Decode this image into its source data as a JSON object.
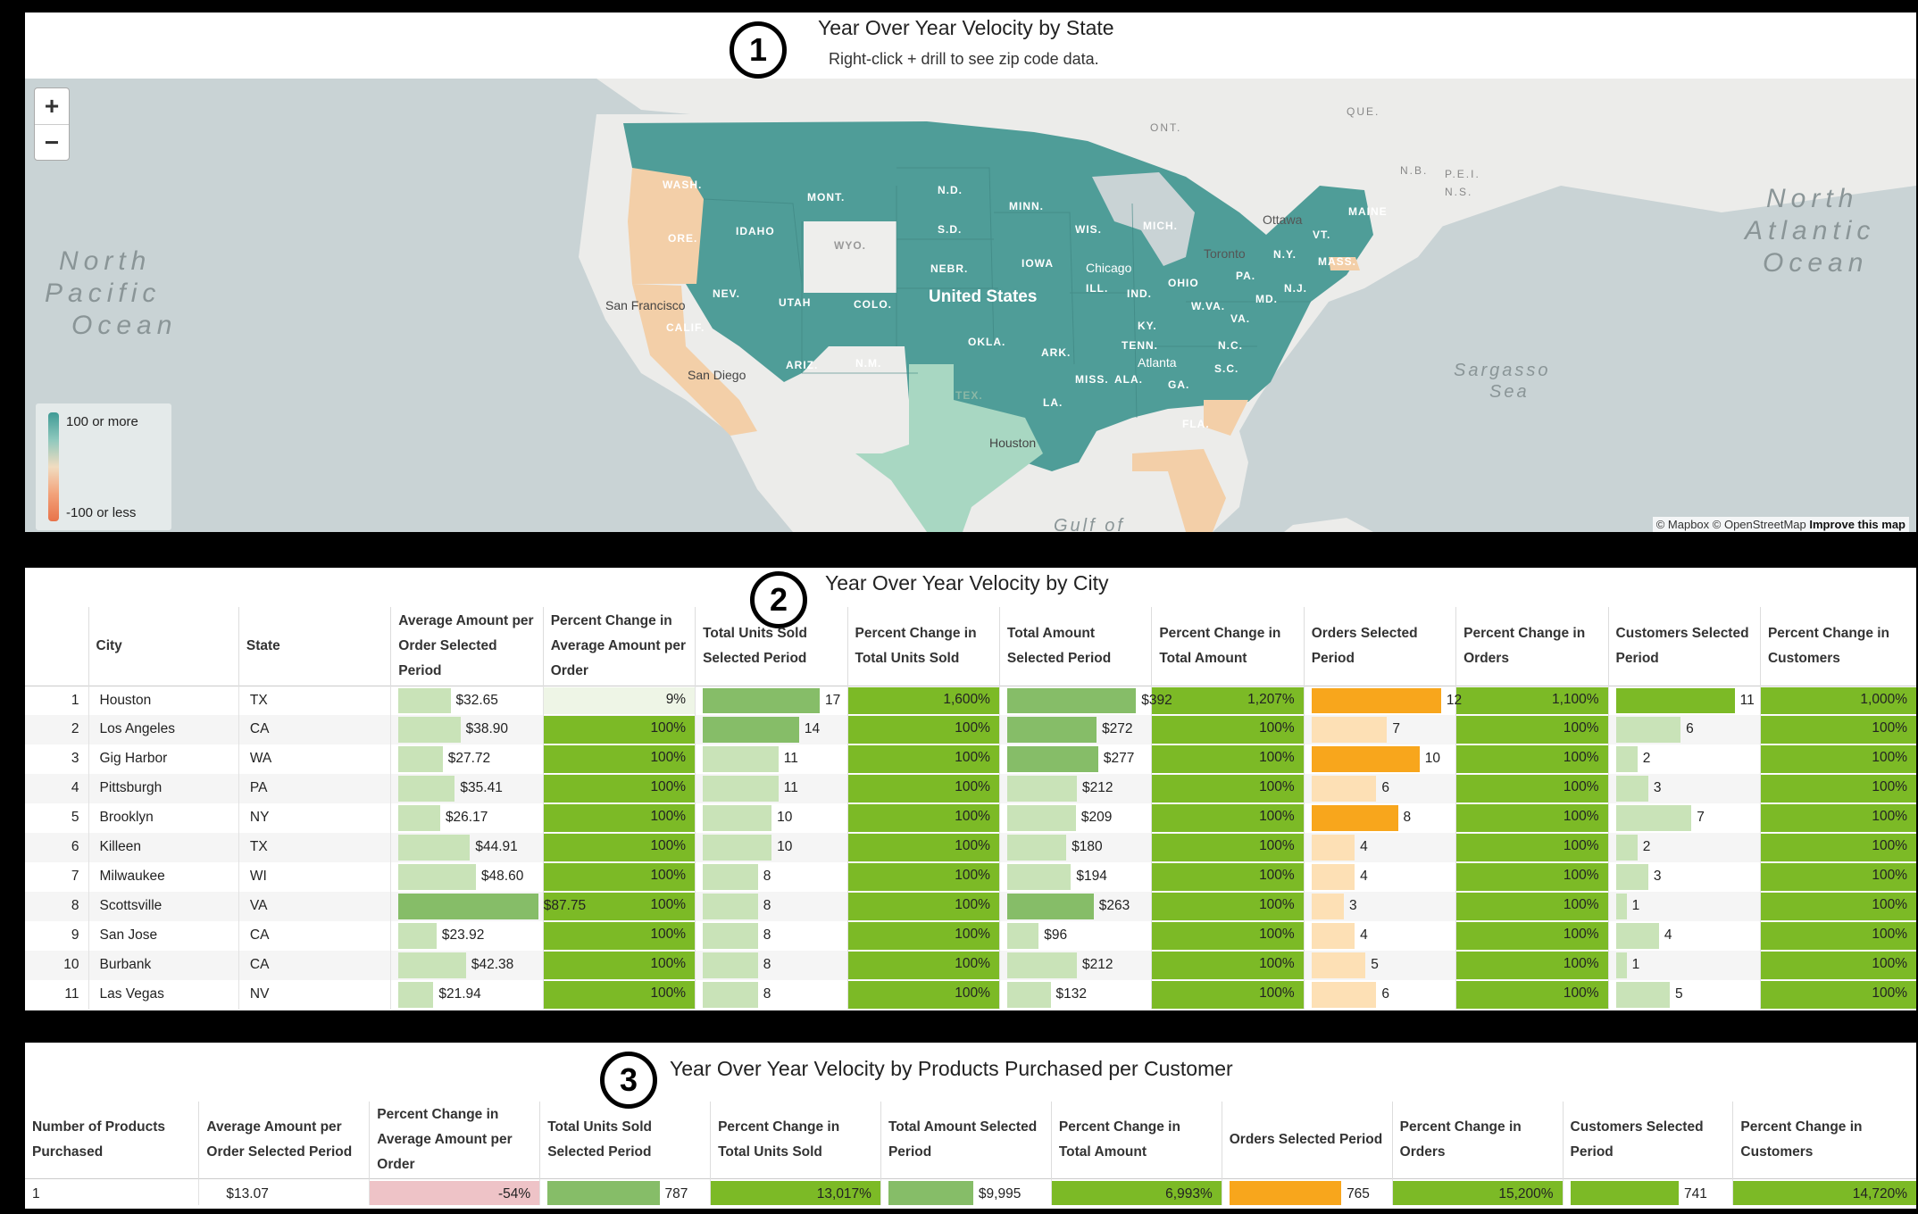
{
  "panel1": {
    "badge": "1",
    "title": "Year Over Year Velocity by State",
    "subtitle": "Right-click + drill to see zip code data.",
    "zoom_in": "+",
    "zoom_out": "−",
    "legend_high": "100 or more",
    "legend_low": "-100 or less",
    "attribution_text": "© Mapbox © OpenStreetMap ",
    "attribution_link": "Improve this map",
    "labels": {
      "north_pacific_1": "North",
      "north_pacific_2": "Pacific",
      "north_pacific_3": "Ocean",
      "north_atlantic_1": "North",
      "north_atlantic_2": "Atlantic",
      "north_atlantic_3": "Ocean",
      "sargasso_1": "Sargasso",
      "sargasso_2": "Sea",
      "gulf": "Gulf of",
      "ont": "ONT.",
      "que": "QUE.",
      "nb": "N.B.",
      "pei": "P.E.I.",
      "ns": "N.S.",
      "ottawa": "Ottawa",
      "toronto": "Toronto",
      "us": "United States",
      "sf": "San Francisco",
      "sd_city": "San Diego",
      "houston": "Houston",
      "chicago": "Chicago",
      "atlanta": "Atlanta",
      "wash": "WASH.",
      "ore": "ORE.",
      "calif": "CALIF.",
      "idaho": "IDAHO",
      "nev": "NEV.",
      "mont": "MONT.",
      "wyo": "WYO.",
      "utah": "UTAH",
      "ariz": "ARIZ.",
      "colo": "COLO.",
      "nm": "N.M.",
      "nd": "N.D.",
      "sd": "S.D.",
      "nebr": "NEBR.",
      "okla": "OKLA.",
      "tex": "TEX.",
      "minn": "MINN.",
      "iowa": "IOWA",
      "ark": "ARK.",
      "la": "LA.",
      "wis": "WIS.",
      "ill": "ILL.",
      "miss": "MISS.",
      "mich": "MICH.",
      "ind": "IND.",
      "ohio": "OHIO",
      "ky": "KY.",
      "tenn": "TENN.",
      "ala": "ALA.",
      "ga": "GA.",
      "fla": "FLA.",
      "sc": "S.C.",
      "nc": "N.C.",
      "va": "VA.",
      "wva": "W.VA.",
      "pa": "PA.",
      "md": "MD.",
      "nj": "N.J.",
      "ny": "N.Y.",
      "vt": "VT.",
      "mass": "MASS.",
      "maine": "MAINE"
    },
    "colors": {
      "positive": "#4f9d98",
      "negative": "#f3cfa8",
      "neutral": "#eeeeec",
      "light": "#a8d7c2",
      "land": "#ececea",
      "water": "#c9d3d5"
    }
  },
  "panel2": {
    "badge": "2",
    "title": "Year Over Year Velocity by City",
    "columns": [
      "",
      "City",
      "State",
      "Average Amount per Order Selected Period",
      "Percent Change in Average Amount per Order",
      "Total Units Sold Selected Period",
      "Percent Change in Total Units Sold",
      "Total Amount Selected Period",
      "Percent Change in Total Amount",
      "Orders Selected Period",
      "Percent Change in Orders",
      "Customers Selected Period",
      "Percent Change in Customers"
    ],
    "rows": [
      {
        "n": "1",
        "city": "Houston",
        "state": "TX",
        "avg": "$32.65",
        "avg_v": 32.65,
        "pavg": "9%",
        "pavg_v": 9,
        "units": "17",
        "units_v": 17,
        "punits": "1,600%",
        "amt": "$392",
        "amt_v": 392,
        "pamt": "1,207%",
        "orders": "12",
        "orders_v": 12,
        "porders": "1,100%",
        "cust": "11",
        "cust_v": 11,
        "pcust": "1,000%"
      },
      {
        "n": "2",
        "city": "Los Angeles",
        "state": "CA",
        "avg": "$38.90",
        "avg_v": 38.9,
        "pavg": "100%",
        "pavg_v": 100,
        "units": "14",
        "units_v": 14,
        "punits": "100%",
        "amt": "$272",
        "amt_v": 272,
        "pamt": "100%",
        "orders": "7",
        "orders_v": 7,
        "porders": "100%",
        "cust": "6",
        "cust_v": 6,
        "pcust": "100%"
      },
      {
        "n": "3",
        "city": "Gig Harbor",
        "state": "WA",
        "avg": "$27.72",
        "avg_v": 27.72,
        "pavg": "100%",
        "pavg_v": 100,
        "units": "11",
        "units_v": 11,
        "punits": "100%",
        "amt": "$277",
        "amt_v": 277,
        "pamt": "100%",
        "orders": "10",
        "orders_v": 10,
        "porders": "100%",
        "cust": "2",
        "cust_v": 2,
        "pcust": "100%"
      },
      {
        "n": "4",
        "city": "Pittsburgh",
        "state": "PA",
        "avg": "$35.41",
        "avg_v": 35.41,
        "pavg": "100%",
        "pavg_v": 100,
        "units": "11",
        "units_v": 11,
        "punits": "100%",
        "amt": "$212",
        "amt_v": 212,
        "pamt": "100%",
        "orders": "6",
        "orders_v": 6,
        "porders": "100%",
        "cust": "3",
        "cust_v": 3,
        "pcust": "100%"
      },
      {
        "n": "5",
        "city": "Brooklyn",
        "state": "NY",
        "avg": "$26.17",
        "avg_v": 26.17,
        "pavg": "100%",
        "pavg_v": 100,
        "units": "10",
        "units_v": 10,
        "punits": "100%",
        "amt": "$209",
        "amt_v": 209,
        "pamt": "100%",
        "orders": "8",
        "orders_v": 8,
        "porders": "100%",
        "cust": "7",
        "cust_v": 7,
        "pcust": "100%"
      },
      {
        "n": "6",
        "city": "Killeen",
        "state": "TX",
        "avg": "$44.91",
        "avg_v": 44.91,
        "pavg": "100%",
        "pavg_v": 100,
        "units": "10",
        "units_v": 10,
        "punits": "100%",
        "amt": "$180",
        "amt_v": 180,
        "pamt": "100%",
        "orders": "4",
        "orders_v": 4,
        "porders": "100%",
        "cust": "2",
        "cust_v": 2,
        "pcust": "100%"
      },
      {
        "n": "7",
        "city": "Milwaukee",
        "state": "WI",
        "avg": "$48.60",
        "avg_v": 48.6,
        "pavg": "100%",
        "pavg_v": 100,
        "units": "8",
        "units_v": 8,
        "punits": "100%",
        "amt": "$194",
        "amt_v": 194,
        "pamt": "100%",
        "orders": "4",
        "orders_v": 4,
        "porders": "100%",
        "cust": "3",
        "cust_v": 3,
        "pcust": "100%"
      },
      {
        "n": "8",
        "city": "Scottsville",
        "state": "VA",
        "avg": "$87.75",
        "avg_v": 87.75,
        "pavg": "100%",
        "pavg_v": 100,
        "units": "8",
        "units_v": 8,
        "punits": "100%",
        "amt": "$263",
        "amt_v": 263,
        "pamt": "100%",
        "orders": "3",
        "orders_v": 3,
        "porders": "100%",
        "cust": "1",
        "cust_v": 1,
        "pcust": "100%"
      },
      {
        "n": "9",
        "city": "San Jose",
        "state": "CA",
        "avg": "$23.92",
        "avg_v": 23.92,
        "pavg": "100%",
        "pavg_v": 100,
        "units": "8",
        "units_v": 8,
        "punits": "100%",
        "amt": "$96",
        "amt_v": 96,
        "pamt": "100%",
        "orders": "4",
        "orders_v": 4,
        "porders": "100%",
        "cust": "4",
        "cust_v": 4,
        "pcust": "100%"
      },
      {
        "n": "10",
        "city": "Burbank",
        "state": "CA",
        "avg": "$42.38",
        "avg_v": 42.38,
        "pavg": "100%",
        "pavg_v": 100,
        "units": "8",
        "units_v": 8,
        "punits": "100%",
        "amt": "$212",
        "amt_v": 212,
        "pamt": "100%",
        "orders": "5",
        "orders_v": 5,
        "porders": "100%",
        "cust": "1",
        "cust_v": 1,
        "pcust": "100%"
      },
      {
        "n": "11",
        "city": "Las Vegas",
        "state": "NV",
        "avg": "$21.94",
        "avg_v": 21.94,
        "pavg": "100%",
        "pavg_v": 100,
        "units": "8",
        "units_v": 8,
        "punits": "100%",
        "amt": "$132",
        "amt_v": 132,
        "pamt": "100%",
        "orders": "6",
        "orders_v": 6,
        "porders": "100%",
        "cust": "5",
        "cust_v": 5,
        "pcust": "100%"
      }
    ],
    "maxes": {
      "avg": 95,
      "units": 22,
      "amt": 460,
      "orders": 14,
      "cust": 14
    },
    "colors": {
      "green_bar": "#86bd68",
      "green_light": "#c9e3b8",
      "pct_green": "#7cba26",
      "pct_pale": "#eef5e6",
      "orange": "#f8a61c",
      "orange_light": "#fde0b5"
    }
  },
  "panel3": {
    "badge": "3",
    "title": "Year Over Year Velocity by Products Purchased per Customer",
    "columns": [
      "Number of Products Purchased",
      "Average Amount per Order Selected Period",
      "Percent Change in Average Amount per Order",
      "Total Units Sold Selected Period",
      "Percent Change in Total Units Sold",
      "Total Amount Selected Period",
      "Percent Change in Total Amount",
      "Orders Selected Period",
      "Percent Change in Orders",
      "Customers Selected Period",
      "Percent Change in Customers"
    ],
    "rows": [
      {
        "n": "1",
        "avg": "$13.07",
        "pavg": "-54%",
        "units": "787",
        "punits": "13,017%",
        "amt": "$9,995",
        "pamt": "6,993%",
        "orders": "765",
        "porders": "15,200%",
        "cust": "741",
        "pcust": "14,720%"
      }
    ],
    "colors": {
      "neg": "#eec3c7"
    }
  }
}
